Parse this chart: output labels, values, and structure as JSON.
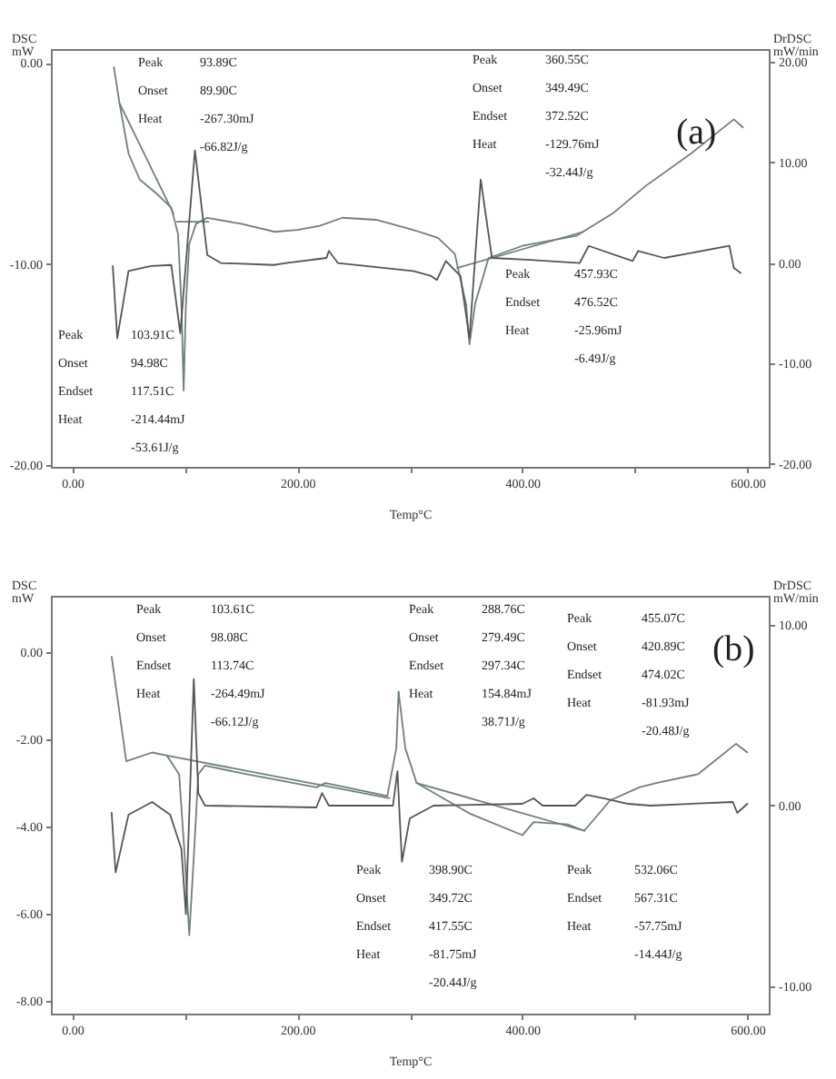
{
  "chart_data": [
    {
      "type": "line",
      "xlabel": "Temp°C",
      "ylabel": "DSC\nmW",
      "y2label": "DrDSC\nmW/min",
      "xlim": [
        -19,
        619
      ],
      "xticks": [
        {
          "value": 0,
          "label": "0.00"
        },
        {
          "value": 100,
          "label": null
        },
        {
          "value": 200,
          "label": "200.00"
        },
        {
          "value": 300,
          "label": null
        },
        {
          "value": 400,
          "label": "400.00"
        },
        {
          "value": 500,
          "label": null
        },
        {
          "value": 600,
          "label": "600.00"
        }
      ],
      "ylim": [
        -20.1,
        0.7
      ],
      "yticks": [
        {
          "value": 0,
          "label": "0.00"
        },
        {
          "value": -10,
          "label": "-10.00"
        },
        {
          "value": -20,
          "label": "-20.00"
        }
      ],
      "y2lim": [
        -20.3,
        21.3
      ],
      "y2ticks": [
        {
          "value": 20,
          "label": "20.00"
        },
        {
          "value": 10,
          "label": "10.00"
        },
        {
          "value": 0,
          "label": "0.00"
        },
        {
          "value": -10,
          "label": "-10.00"
        },
        {
          "value": -20,
          "label": "-20.00"
        }
      ],
      "series": [
        {
          "color": "#6f7f78",
          "x": [
            37,
            42,
            50,
            60,
            75,
            88,
            94,
            97,
            99,
            101,
            104,
            110,
            120,
            150,
            180,
            200,
            220,
            240,
            270,
            303,
            325,
            340,
            350,
            353,
            358,
            370,
            400,
            448,
            480,
            510,
            550,
            588,
            596
          ],
          "values": [
            -0.2,
            -2,
            -4.5,
            -5.8,
            -6.5,
            -7.2,
            -8.5,
            -12,
            -16.3,
            -12,
            -9,
            -8,
            -7.7,
            -8,
            -8.4,
            -8.3,
            -8.1,
            -7.7,
            -7.8,
            -8.3,
            -8.7,
            -9.5,
            -12,
            -14,
            -12,
            -9.7,
            -9.1,
            -8.6,
            -7.5,
            -6.1,
            -4.5,
            -2.8,
            -3.2
          ]
        },
        {
          "color": "#6f7f78",
          "x": [
            42,
            90,
            91,
            93,
            121,
            122,
            342,
            454
          ],
          "values": [
            -2,
            -7.5,
            null,
            -7.9,
            -7.9,
            null,
            -10.2,
            -8.4
          ]
        },
        {
          "color": "#555555",
          "axis": "y2",
          "x": [
            36,
            40,
            50,
            70,
            88,
            96,
            109,
            120,
            132,
            179,
            190,
            226,
            228,
            236,
            303,
            319,
            324,
            332,
            345,
            353,
            363,
            373,
            407,
            451,
            459,
            498,
            503,
            526,
            584,
            588,
            594
          ],
          "values": [
            -0.3,
            -7.5,
            -0.8,
            -0.3,
            -0.2,
            -7,
            11.2,
            0.8,
            0,
            -0.2,
            0,
            0.5,
            1.2,
            0,
            -0.8,
            -1.3,
            -1.7,
            0.2,
            -1.3,
            -7.5,
            8.3,
            0.5,
            0.3,
            0,
            1.7,
            0.2,
            1.2,
            0.5,
            1.7,
            -0.5,
            -1
          ]
        }
      ],
      "annotations": [
        "Peak\nOnset\nHeat",
        "93.89C\n89.90C\n-267.30mJ\n-66.82J/g",
        "Peak\nOnset\nEndset\nHeat",
        "103.91C\n94.98C\n117.51C\n-214.44mJ\n-53.61J/g",
        "Peak\nOnset\nEndset\nHeat",
        "360.55C\n349.49C\n372.52C\n-129.76mJ\n-32.44J/g",
        "Peak\nEndset\nHeat",
        "457.93C\n476.52C\n-25.96mJ\n-6.49J/g",
        "(a)"
      ]
    },
    {
      "type": "line",
      "xlabel": "Temp°C",
      "ylabel": "DSC\nmW",
      "y2label": "DrDSC\nmW/min",
      "xlim": [
        -19,
        619
      ],
      "xticks": [
        {
          "value": 0,
          "label": "0.00"
        },
        {
          "value": 100,
          "label": null
        },
        {
          "value": 200,
          "label": "200.00"
        },
        {
          "value": 300,
          "label": null
        },
        {
          "value": 400,
          "label": "400.00"
        },
        {
          "value": 500,
          "label": null
        },
        {
          "value": 600,
          "label": "600.00"
        }
      ],
      "ylim": [
        -8.3,
        1.3
      ],
      "yticks": [
        {
          "value": 0,
          "label": "0.00"
        },
        {
          "value": -2,
          "label": "-2.00"
        },
        {
          "value": -4,
          "label": "-4.00"
        },
        {
          "value": -6,
          "label": "-6.00"
        },
        {
          "value": -8,
          "label": "-8.00"
        }
      ],
      "y2lim": [
        -11.5,
        11.6
      ],
      "y2ticks": [
        {
          "value": 10,
          "label": "10.00"
        },
        {
          "value": 0,
          "label": "0.00"
        },
        {
          "value": -10,
          "label": "-10.00"
        }
      ],
      "series": [
        {
          "color": "#6f7f78",
          "x": [
            35,
            48,
            71,
            84,
            95,
            100,
            104,
            108,
            112,
            118,
            155,
            217,
            225,
            280,
            288,
            290,
            296,
            306,
            353,
            400,
            410,
            440,
            455,
            478,
            504,
            519,
            556,
            590,
            600
          ],
          "values": [
            -0.1,
            -2.5,
            -2.3,
            -2.37,
            -2.8,
            -4.7,
            -6.5,
            -4.7,
            -2.8,
            -2.6,
            -2.8,
            -3.1,
            -3,
            -3.3,
            -2.2,
            -0.9,
            -2.2,
            -3,
            -3.7,
            -4.2,
            -3.9,
            -3.95,
            -4.1,
            -3.4,
            -3.1,
            -3,
            -2.8,
            -2.1,
            -2.3
          ]
        },
        {
          "color": "#6f7f78",
          "x": [
            84,
            282,
            283,
            306,
            455
          ],
          "values": [
            -2.37,
            -3.35,
            null,
            -3,
            -4.1
          ]
        },
        {
          "color": "#555555",
          "axis": "y2",
          "x": [
            35,
            38.5,
            50,
            71,
            87,
            97,
            101,
            108,
            112,
            118,
            217,
            222,
            228,
            285,
            289,
            293,
            300,
            321,
            400,
            410,
            418,
            447,
            457,
            473,
            494,
            514,
            587,
            591,
            600
          ],
          "values": [
            -0.4,
            -3.7,
            -0.5,
            0.2,
            -0.5,
            -2.4,
            -6,
            7,
            0.7,
            0,
            -0.1,
            0.7,
            0,
            0,
            1.9,
            -3.1,
            -0.7,
            0,
            0.1,
            0.4,
            0,
            0,
            0.6,
            0.4,
            0.1,
            0,
            0.2,
            -0.4,
            0.1
          ]
        }
      ],
      "annotations": [
        "Peak\nOnset\nEndset\nHeat",
        "103.61C\n98.08C\n113.74C\n-264.49mJ\n-66.12J/g",
        "Peak\nOnset\nEndset\nHeat",
        "288.76C\n279.49C\n297.34C\n154.84mJ\n38.71J/g",
        "Peak\nOnset\nEndset\nHeat",
        "455.07C\n420.89C\n474.02C\n-81.93mJ\n-20.48J/g",
        "Peak\nOnset\nEndset\nHeat",
        "398.90C\n349.72C\n417.55C\n-81.75mJ\n-20.44J/g",
        "Peak\nEndset\nHeat",
        "532.06C\n567.31C\n-57.75mJ\n-14.44J/g",
        "(b)"
      ]
    }
  ]
}
